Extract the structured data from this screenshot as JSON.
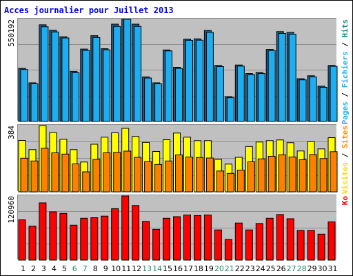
{
  "chart_data": {
    "type": "bar",
    "title": "Acces journalier pour Juillet 2013",
    "days": [
      "1",
      "2",
      "3",
      "4",
      "5",
      "6",
      "7",
      "8",
      "9",
      "10",
      "11",
      "12",
      "13",
      "14",
      "15",
      "16",
      "17",
      "18",
      "19",
      "20",
      "21",
      "22",
      "23",
      "24",
      "25",
      "26",
      "27",
      "28",
      "29",
      "30",
      "31"
    ],
    "weekend_days": [
      "6",
      "7",
      "13",
      "14",
      "20",
      "21",
      "27",
      "28"
    ],
    "panels": [
      {
        "name": "pages-hits",
        "ymax_label": "550192",
        "ymax": 550192,
        "legend": [
          {
            "text": "Pages",
            "color": "#29aee7"
          },
          {
            "text": " / ",
            "color": "#000000"
          },
          {
            "text": "Fichiers",
            "color": "#29aee7"
          },
          {
            "text": " / ",
            "color": "#000000"
          },
          {
            "text": "Hits",
            "color": "#228b8b"
          }
        ],
        "series": [
          {
            "name": "Hits",
            "color": "#1e5e8c",
            "offset": 0,
            "values": [
              286000,
              208000,
              521000,
              491000,
              456000,
              269000,
              390000,
              462000,
              392000,
              524000,
              570000,
              524000,
              240000,
              208000,
              385000,
              292000,
              443000,
              445000,
              490000,
              302000,
              133000,
              304000,
              258000,
              264000,
              388000,
              484000,
              480000,
              230000,
              246000,
              190000,
              302000
            ]
          },
          {
            "name": "Fichiers",
            "color": "#1eaef0",
            "offset": 1,
            "values": [
              280000,
              203000,
              510000,
              482000,
              450000,
              263000,
              383000,
              452000,
              386000,
              512000,
              560000,
              512000,
              234000,
              203000,
              380000,
              286000,
              437000,
              438000,
              480000,
              296000,
              128000,
              298000,
              252000,
              258000,
              382000,
              474000,
              470000,
              224000,
              240000,
              184000,
              297000
            ]
          }
        ]
      },
      {
        "name": "visits-sites",
        "ymax_label": "384",
        "ymax": 384,
        "legend": [
          {
            "text": "Visites",
            "color": "#ffd700"
          },
          {
            "text": " / ",
            "color": "#000000"
          },
          {
            "text": "Sites",
            "color": "#ff8c00"
          }
        ],
        "series": [
          {
            "name": "Visites",
            "color": "#ffff00",
            "offset": 0,
            "values": [
              298,
              245,
              384,
              344,
              305,
              245,
              173,
              276,
              317,
              342,
              368,
              321,
              287,
              234,
              302,
              341,
              317,
              297,
              297,
              188,
              161,
              200,
              263,
              289,
              297,
              301,
              285,
              237,
              291,
              249,
              314
            ]
          },
          {
            "name": "Sites",
            "color": "#ff8000",
            "offset": 1,
            "values": [
              195,
              179,
              253,
              226,
              219,
              162,
              116,
              188,
              227,
              229,
              236,
              200,
              175,
              159,
              179,
              214,
              202,
              199,
              196,
              121,
              107,
              126,
              174,
              191,
              206,
              215,
              202,
              186,
              216,
              193,
              233
            ]
          }
        ]
      },
      {
        "name": "kb",
        "ymax_label": "120960",
        "ymax": 120960,
        "legend": [
          {
            "text": "Ko",
            "color": "#ff0000"
          }
        ],
        "series": [
          {
            "name": "Ko",
            "color": "#ff0000",
            "offset": 0,
            "values": [
              76000,
              64000,
              108000,
              91000,
              88000,
              66000,
              79000,
              80000,
              83000,
              97000,
              122000,
              103000,
              73000,
              58000,
              79000,
              82000,
              85000,
              84000,
              85000,
              57000,
              39000,
              70000,
              57000,
              69000,
              79000,
              86000,
              78000,
              56000,
              56000,
              49000,
              72000
            ]
          }
        ]
      }
    ]
  }
}
